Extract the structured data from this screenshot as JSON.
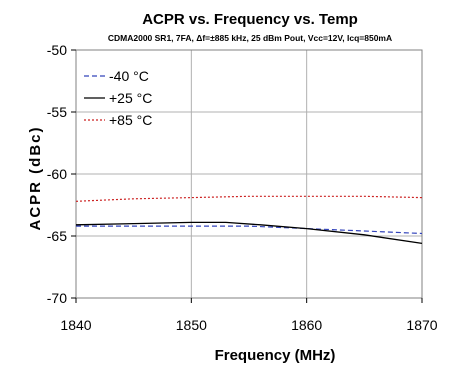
{
  "chart_data": {
    "type": "line",
    "title": "ACPR vs. Frequency vs. Temp",
    "subtitle": "CDMA2000 SR1, 7FA, Δf=±885 kHz, 25 dBm Pout, Vcc=12V, Icq=850mA",
    "xlabel": "Frequency (MHz)",
    "ylabel": "ACPR (dBc)",
    "xlim": [
      1840,
      1870
    ],
    "ylim": [
      -70,
      -50
    ],
    "xticks": [
      1840,
      1850,
      1860,
      1870
    ],
    "yticks": [
      -50,
      -55,
      -60,
      -65,
      -70
    ],
    "grid": true,
    "legend_position": "top-left",
    "series": [
      {
        "name": "-40 °C",
        "color": "#3344bb",
        "style": "dashed",
        "x": [
          1840,
          1845,
          1850,
          1855,
          1860,
          1865,
          1870
        ],
        "y": [
          -64.2,
          -64.2,
          -64.2,
          -64.2,
          -64.4,
          -64.6,
          -64.8
        ]
      },
      {
        "name": "+25 °C",
        "color": "#000000",
        "style": "solid",
        "x": [
          1840,
          1845,
          1850,
          1853,
          1856,
          1860,
          1865,
          1870
        ],
        "y": [
          -64.1,
          -64.0,
          -63.9,
          -63.9,
          -64.1,
          -64.4,
          -64.9,
          -65.6
        ]
      },
      {
        "name": "+85 °C",
        "color": "#cc2222",
        "style": "dotted",
        "x": [
          1840,
          1845,
          1850,
          1855,
          1860,
          1865,
          1870
        ],
        "y": [
          -62.2,
          -62.0,
          -61.9,
          -61.8,
          -61.8,
          -61.8,
          -61.9
        ]
      }
    ]
  }
}
